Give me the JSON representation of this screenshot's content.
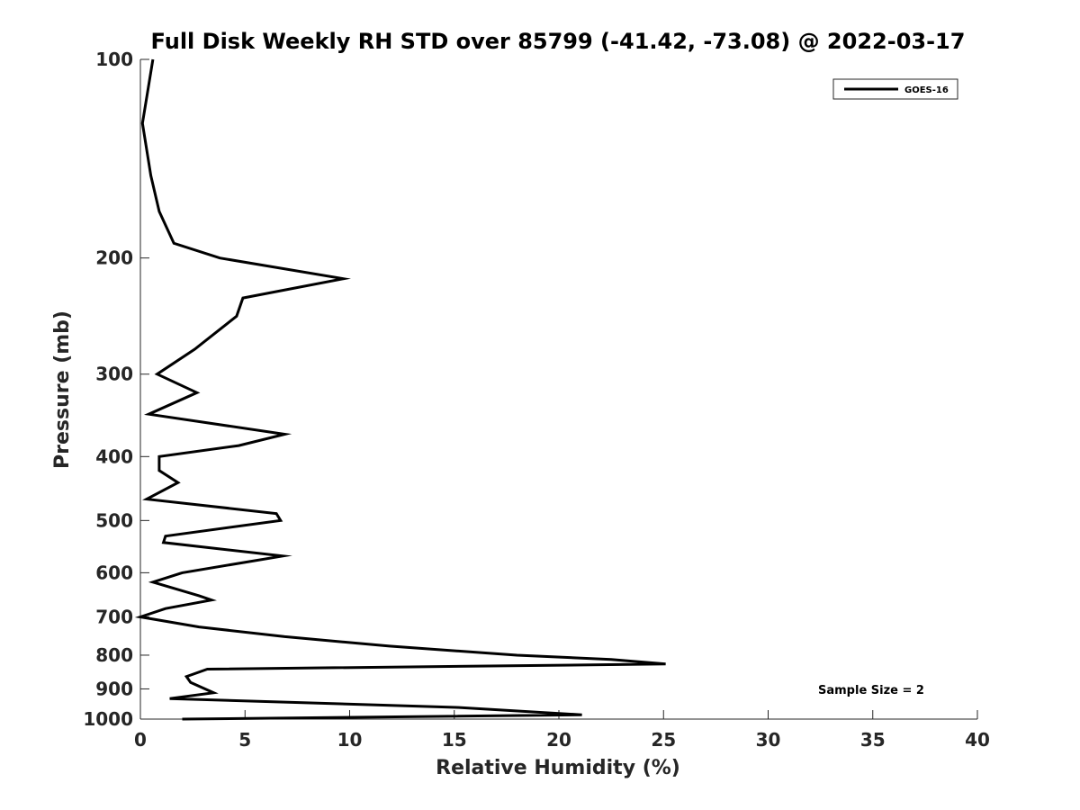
{
  "chart_data": {
    "type": "line",
    "title": "Full Disk Weekly RH STD over 85799 (-41.42, -73.08) @ 2022-03-17",
    "xlabel": "Relative Humidity (%)",
    "ylabel": "Pressure (mb)",
    "xlim": [
      0,
      40
    ],
    "ylim": [
      100,
      1000
    ],
    "y_scale": "log",
    "y_reversed": true,
    "x_ticks": [
      0,
      5,
      10,
      15,
      20,
      25,
      30,
      35,
      40
    ],
    "y_ticks": [
      100,
      200,
      300,
      400,
      500,
      600,
      700,
      800,
      900,
      1000
    ],
    "grid": false,
    "legend_position": "top-right",
    "annotation": "Sample Size = 2",
    "series": [
      {
        "name": "GOES-16",
        "color": "#000000",
        "points": [
          [
            0.6,
            100
          ],
          [
            0.1,
            125
          ],
          [
            0.5,
            150
          ],
          [
            0.9,
            170
          ],
          [
            1.6,
            190
          ],
          [
            3.8,
            200
          ],
          [
            9.7,
            215
          ],
          [
            4.9,
            230
          ],
          [
            4.6,
            245
          ],
          [
            2.6,
            275
          ],
          [
            0.8,
            300
          ],
          [
            2.7,
            320
          ],
          [
            0.4,
            345
          ],
          [
            6.9,
            370
          ],
          [
            4.7,
            385
          ],
          [
            0.9,
            400
          ],
          [
            0.9,
            420
          ],
          [
            1.8,
            438
          ],
          [
            0.3,
            464
          ],
          [
            6.5,
            488
          ],
          [
            6.7,
            500
          ],
          [
            1.2,
            528
          ],
          [
            1.1,
            540
          ],
          [
            6.8,
            566
          ],
          [
            2.0,
            600
          ],
          [
            0.6,
            620
          ],
          [
            2.8,
            650
          ],
          [
            3.4,
            660
          ],
          [
            1.2,
            680
          ],
          [
            0.0,
            700
          ],
          [
            2.8,
            725
          ],
          [
            6.9,
            750
          ],
          [
            11.9,
            775
          ],
          [
            18.0,
            800
          ],
          [
            22.5,
            812
          ],
          [
            25.1,
            825
          ],
          [
            3.2,
            840
          ],
          [
            2.2,
            862
          ],
          [
            2.4,
            880
          ],
          [
            3.5,
            912
          ],
          [
            1.4,
            931
          ],
          [
            15.1,
            960
          ],
          [
            21.1,
            985
          ],
          [
            9.7,
            994
          ],
          [
            2.0,
            1000
          ]
        ]
      }
    ]
  }
}
